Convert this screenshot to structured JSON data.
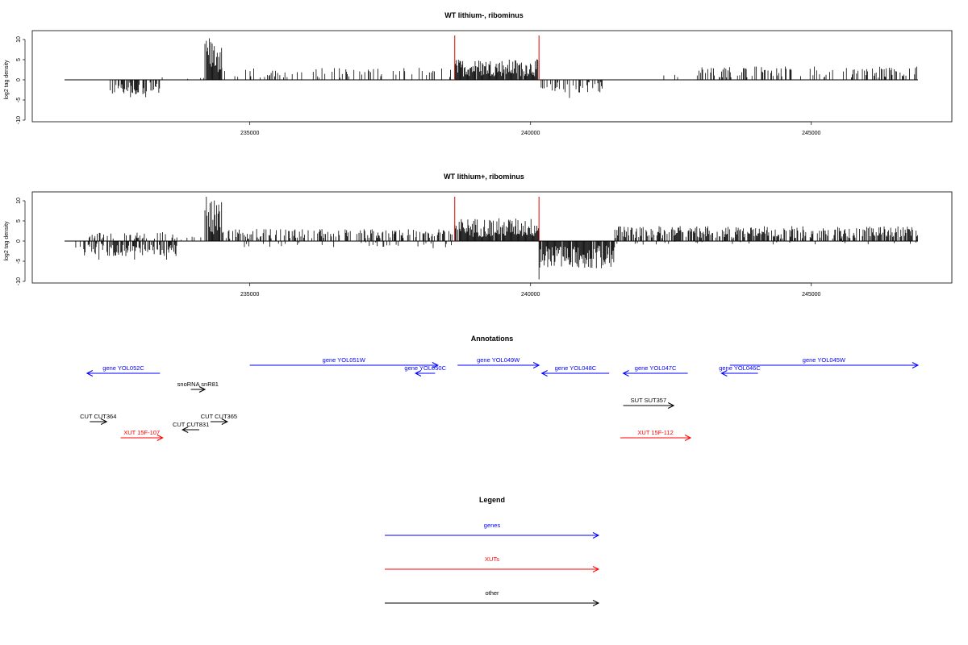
{
  "panels": [
    {
      "title": "WT lithium-, ribominus",
      "ylabel": "log2 tag density",
      "yticks": [
        "10",
        "5",
        "0",
        "-5",
        "-10"
      ],
      "xticks": [
        "235000",
        "240000",
        "245000"
      ]
    },
    {
      "title": "WT lithium+, ribominus",
      "ylabel": "log2 tag density",
      "yticks": [
        "10",
        "5",
        "0",
        "-5",
        "-10"
      ],
      "xticks": [
        "235000",
        "240000",
        "245000"
      ]
    }
  ],
  "annotations_title": "Annotations",
  "legend": {
    "title": "Legend",
    "items": [
      {
        "label": "genes",
        "color": "#0000ff"
      },
      {
        "label": "XUTs",
        "color": "#ff0000"
      },
      {
        "label": "other",
        "color": "#000000"
      }
    ]
  },
  "colors": {
    "genes": "#0000ff",
    "xuts": "#ff0000",
    "other": "#000000",
    "marker": "#dd0000",
    "signal": "#000000"
  },
  "chart_data": {
    "type": "bar",
    "x_range": [
      231700,
      246900
    ],
    "y_range": [
      -10,
      12
    ],
    "marker_positions": [
      238650,
      240150
    ],
    "tracks": [
      {
        "title": "WT lithium-, ribominus",
        "segments": [
          {
            "start": 232500,
            "end": 233400,
            "amp": -2.5,
            "prob": 0.55,
            "min_amp": -4.3
          },
          {
            "start": 233400,
            "end": 234200,
            "amp": 0.6,
            "prob": 0.06
          },
          {
            "start": 234200,
            "end": 234500,
            "amp": 6.5,
            "prob": 0.95,
            "min_amp": 10.3
          },
          {
            "start": 234500,
            "end": 238600,
            "amp": 2.0,
            "prob": 0.22
          },
          {
            "start": 238650,
            "end": 240150,
            "amp": 3.4,
            "prob": 0.92
          },
          {
            "start": 240150,
            "end": 241300,
            "amp": -2.2,
            "prob": 0.42,
            "min_amp": -4.5
          },
          {
            "start": 241300,
            "end": 243000,
            "amp": 1.2,
            "prob": 0.04
          },
          {
            "start": 243000,
            "end": 246900,
            "amp": 2.2,
            "prob": 0.32
          }
        ]
      },
      {
        "title": "WT lithium+, ribominus",
        "segments": [
          {
            "start": 231900,
            "end": 233700,
            "amp": -2.5,
            "prob": 0.6,
            "min_amp": -4.6
          },
          {
            "start": 232100,
            "end": 233700,
            "amp": 1.5,
            "prob": 0.3
          },
          {
            "start": 233700,
            "end": 234200,
            "amp": 1.0,
            "prob": 0.18
          },
          {
            "start": 234200,
            "end": 234500,
            "amp": 6.8,
            "prob": 0.95,
            "min_amp": 11.0
          },
          {
            "start": 234500,
            "end": 238600,
            "amp": 2.0,
            "prob": 0.45
          },
          {
            "start": 234800,
            "end": 238600,
            "amp": -1.2,
            "prob": 0.1
          },
          {
            "start": 238650,
            "end": 240150,
            "amp": 3.8,
            "prob": 0.97
          },
          {
            "start": 240150,
            "end": 241500,
            "amp": -4.5,
            "prob": 0.95,
            "min_amp": -9.5
          },
          {
            "start": 241500,
            "end": 246900,
            "amp": 2.5,
            "prob": 0.62
          },
          {
            "start": 241500,
            "end": 246900,
            "amp": -0.6,
            "prob": 0.05
          }
        ]
      }
    ],
    "annotations": [
      {
        "label": "gene YOL052C",
        "start": 232100,
        "end": 233400,
        "strand": "-",
        "kind": "genes",
        "row": 0
      },
      {
        "label": "gene YOL051W",
        "start": 235000,
        "end": 238350,
        "strand": "+",
        "kind": "genes",
        "row": -0.5
      },
      {
        "label": "gene YOL050C",
        "start": 237950,
        "end": 238300,
        "strand": "-",
        "kind": "genes",
        "row": 0
      },
      {
        "label": "gene YOL049W",
        "start": 238700,
        "end": 240150,
        "strand": "+",
        "kind": "genes",
        "row": -0.5
      },
      {
        "label": "gene YOL048C",
        "start": 240200,
        "end": 241400,
        "strand": "-",
        "kind": "genes",
        "row": 0
      },
      {
        "label": "gene YOL047C",
        "start": 241650,
        "end": 242800,
        "strand": "-",
        "kind": "genes",
        "row": 0
      },
      {
        "label": "gene YOL046C",
        "start": 243400,
        "end": 244050,
        "strand": "-",
        "kind": "genes",
        "row": 0
      },
      {
        "label": "gene YOL045W",
        "start": 243550,
        "end": 246900,
        "strand": "+",
        "kind": "genes",
        "row": -0.5
      },
      {
        "label": "snoRNA snR81",
        "start": 233950,
        "end": 234200,
        "strand": "+",
        "kind": "other",
        "row": 1
      },
      {
        "label": "SUT SUT357",
        "start": 241650,
        "end": 242550,
        "strand": "+",
        "kind": "other",
        "row": 2
      },
      {
        "label": "CUT CUT364",
        "start": 232150,
        "end": 232450,
        "strand": "+",
        "kind": "other",
        "row": 3
      },
      {
        "label": "CUT CUT365",
        "start": 234300,
        "end": 234600,
        "strand": "+",
        "kind": "other",
        "row": 3
      },
      {
        "label": "CUT CUT831",
        "start": 233800,
        "end": 234100,
        "strand": "-",
        "kind": "other",
        "row": 3.5
      },
      {
        "label": "XUT 15F-107",
        "start": 232700,
        "end": 233450,
        "strand": "+",
        "kind": "xuts",
        "row": 4
      },
      {
        "label": "XUT 15F-112",
        "start": 241600,
        "end": 242850,
        "strand": "+",
        "kind": "xuts",
        "row": 4
      }
    ]
  }
}
